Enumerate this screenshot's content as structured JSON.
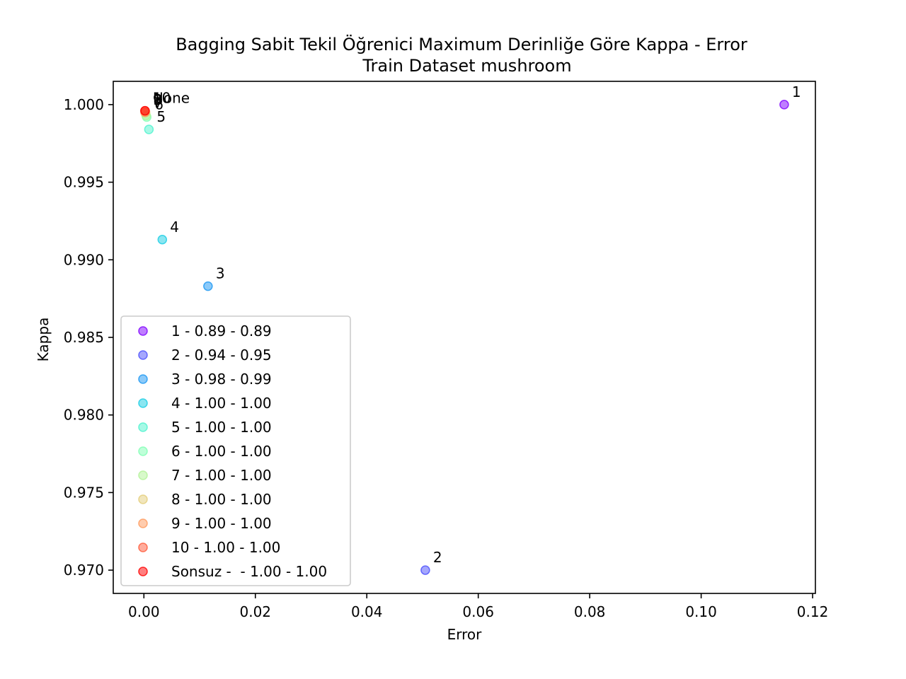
{
  "chart_data": {
    "type": "scatter",
    "title": "Bagging Sabit Tekil Öğrenici Maximum Derinliğe Göre Kappa - Error",
    "subtitle": "Train Dataset  mushroom",
    "xlabel": "Error",
    "ylabel": "Kappa",
    "xlim": [
      -0.0055,
      0.1205
    ],
    "ylim": [
      0.9685,
      1.0015
    ],
    "xticks": [
      0.0,
      0.02,
      0.04,
      0.06,
      0.08,
      0.1,
      0.12
    ],
    "xtick_labels": [
      "0.00",
      "0.02",
      "0.04",
      "0.06",
      "0.08",
      "0.10",
      "0.12"
    ],
    "yticks": [
      0.97,
      0.975,
      0.98,
      0.985,
      0.99,
      0.995,
      1.0
    ],
    "ytick_labels": [
      "0.970",
      "0.975",
      "0.980",
      "0.985",
      "0.990",
      "0.995",
      "1.000"
    ],
    "legend_position": "lower-left",
    "grid": false,
    "series": [
      {
        "name": "1 - 0.89 - 0.89",
        "label": "1",
        "x": 0.1149,
        "y": 1.0,
        "color": "#8000ff"
      },
      {
        "name": "2 - 0.94 - 0.95",
        "label": "2",
        "x": 0.0505,
        "y": 0.97,
        "color": "#4b4ffc"
      },
      {
        "name": "3 - 0.98 - 0.99",
        "label": "3",
        "x": 0.0115,
        "y": 0.9883,
        "color": "#1996f3"
      },
      {
        "name": "4 - 1.00 - 1.00",
        "label": "4",
        "x": 0.0033,
        "y": 0.9913,
        "color": "#18cde4"
      },
      {
        "name": "5 - 1.00 - 1.00",
        "label": "5",
        "x": 0.0009,
        "y": 0.9984,
        "color": "#4df3ce"
      },
      {
        "name": "6 - 1.00 - 1.00",
        "label": "6",
        "x": 0.0005,
        "y": 0.9992,
        "color": "#80ffb4"
      },
      {
        "name": "7 - 1.00 - 1.00",
        "label": "7",
        "x": 0.0004,
        "y": 0.9993,
        "color": "#b2f396"
      },
      {
        "name": "8 - 1.00 - 1.00",
        "label": "8",
        "x": 0.0003,
        "y": 0.9995,
        "color": "#e4cd79"
      },
      {
        "name": "9 - 1.00 - 1.00",
        "label": "9",
        "x": 0.0002,
        "y": 0.9995,
        "color": "#ff9a5c"
      },
      {
        "name": "10 - 1.00 - 1.00",
        "label": "10",
        "x": 0.0002,
        "y": 0.9996,
        "color": "#ff5a3a"
      },
      {
        "name": "Sonsuz -  - 1.00 - 1.00",
        "label": "None",
        "x": 0.0002,
        "y": 0.9996,
        "color": "#ff0000"
      }
    ]
  }
}
